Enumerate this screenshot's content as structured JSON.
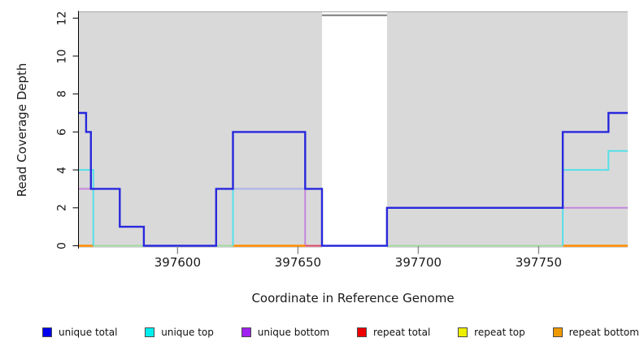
{
  "chart_data": {
    "type": "line",
    "subtype": "step-coverage-plot",
    "title": "",
    "xlabel": "Coordinate in Reference Genome",
    "ylabel": "Read Coverage Depth",
    "xlim": [
      397559,
      397787
    ],
    "ylim": [
      0,
      12
    ],
    "x_ticks": [
      397600,
      397650,
      397700,
      397750
    ],
    "y_ticks": [
      0,
      2,
      4,
      6,
      8,
      10,
      12
    ],
    "grid": false,
    "legend_position": "bottom",
    "background_shading": {
      "color": "#d9d9d9",
      "covered_regions": [
        [
          397559,
          397660
        ],
        [
          397687,
          397787
        ]
      ],
      "uncovered_gap": [
        [
          397660,
          397687
        ]
      ],
      "note": "gray band = covered interval; white gap at 397660-397687 with off-scale gray segment clipped at top"
    },
    "series": [
      {
        "name": "unique total",
        "legend_color": "#0000EE",
        "points": [
          [
            397559,
            7
          ],
          [
            397562,
            7
          ],
          [
            397562,
            6
          ],
          [
            397564,
            6
          ],
          [
            397564,
            3
          ],
          [
            397576,
            3
          ],
          [
            397576,
            1
          ],
          [
            397586,
            1
          ],
          [
            397586,
            0
          ],
          [
            397616,
            0
          ],
          [
            397616,
            3
          ],
          [
            397623,
            3
          ],
          [
            397623,
            6
          ],
          [
            397653,
            6
          ],
          [
            397653,
            3
          ],
          [
            397660,
            3
          ],
          [
            397660,
            0
          ],
          [
            397687,
            0
          ],
          [
            397687,
            2
          ],
          [
            397760,
            2
          ],
          [
            397760,
            6
          ],
          [
            397779,
            6
          ],
          [
            397779,
            7
          ],
          [
            397787,
            7
          ]
        ]
      },
      {
        "name": "unique top",
        "legend_color": "#00EEEE",
        "points": [
          [
            397559,
            4
          ],
          [
            397565,
            4
          ],
          [
            397565,
            0
          ],
          [
            397623,
            0
          ],
          [
            397623,
            3
          ],
          [
            397660,
            3
          ],
          [
            397660,
            0
          ],
          [
            397760,
            0
          ],
          [
            397760,
            4
          ],
          [
            397779,
            4
          ],
          [
            397779,
            5
          ],
          [
            397787,
            5
          ]
        ]
      },
      {
        "name": "unique bottom",
        "legend_color": "#A020F0",
        "points": [
          [
            397559,
            3
          ],
          [
            397564,
            3
          ],
          [
            397564,
            0
          ],
          [
            397616,
            0
          ],
          [
            397616,
            3
          ],
          [
            397653,
            3
          ],
          [
            397653,
            0
          ],
          [
            397687,
            0
          ],
          [
            397687,
            2
          ],
          [
            397787,
            2
          ]
        ]
      },
      {
        "name": "repeat total",
        "legend_color": "#EE0000",
        "points": [
          [
            397653,
            0
          ],
          [
            397660,
            0
          ]
        ]
      },
      {
        "name": "repeat top",
        "legend_color": "#EEEE00",
        "points": []
      },
      {
        "name": "repeat bottom",
        "legend_color": "#EE9900",
        "segments": [
          [
            [
              397559,
              0
            ],
            [
              397565,
              0
            ]
          ],
          [
            [
              397623,
              0
            ],
            [
              397653,
              0
            ]
          ],
          [
            [
              397760,
              0
            ],
            [
              397787,
              0
            ]
          ]
        ]
      }
    ],
    "render_layers": [
      {
        "name": "baseline-green",
        "color": "#98d898",
        "width": 1.8,
        "paths": [
          [
            [
              397559,
              0
            ],
            [
              397787,
              0
            ]
          ]
        ]
      },
      {
        "name": "unique-bottom",
        "color": "#c585dc",
        "width": 2,
        "paths": [
          [
            [
              397559,
              3
            ],
            [
              397564,
              3
            ]
          ],
          [
            [
              397616,
              3
            ],
            [
              397653,
              3
            ],
            [
              397653,
              0
            ]
          ],
          [
            [
              397687,
              2
            ],
            [
              397787,
              2
            ]
          ]
        ]
      },
      {
        "name": "unique-top-bottom-overlap",
        "color": "#aab8e8",
        "width": 2,
        "paths": [
          [
            [
              397623,
              3
            ],
            [
              397653,
              3
            ]
          ]
        ]
      },
      {
        "name": "repeat-total",
        "color": "#dd4466",
        "width": 2,
        "paths": [
          [
            [
              397653,
              0
            ],
            [
              397660,
              0
            ]
          ]
        ]
      },
      {
        "name": "repeat-bottom",
        "color": "#ff8c00",
        "width": 2.4,
        "paths": [
          [
            [
              397559,
              0
            ],
            [
              397565,
              0
            ]
          ],
          [
            [
              397623,
              0
            ],
            [
              397653,
              0
            ]
          ],
          [
            [
              397760,
              0
            ],
            [
              397787,
              0
            ]
          ]
        ]
      },
      {
        "name": "unique-top",
        "color": "#55e0e8",
        "width": 2,
        "paths": [
          [
            [
              397559,
              4
            ],
            [
              397565,
              4
            ],
            [
              397565,
              0
            ]
          ],
          [
            [
              397623,
              0
            ],
            [
              397623,
              3
            ]
          ],
          [
            [
              397760,
              0
            ],
            [
              397760,
              4
            ],
            [
              397779,
              4
            ],
            [
              397779,
              5
            ],
            [
              397787,
              5
            ]
          ]
        ]
      },
      {
        "name": "unique-total",
        "color": "#2828dd",
        "width": 2.4,
        "paths": [
          [
            [
              397559,
              7
            ],
            [
              397562,
              7
            ],
            [
              397562,
              6
            ],
            [
              397564,
              6
            ],
            [
              397564,
              3
            ],
            [
              397576,
              3
            ],
            [
              397576,
              1
            ],
            [
              397586,
              1
            ],
            [
              397586,
              0
            ],
            [
              397616,
              0
            ],
            [
              397616,
              3
            ],
            [
              397623,
              3
            ],
            [
              397623,
              6
            ],
            [
              397653,
              6
            ],
            [
              397653,
              3
            ],
            [
              397660,
              3
            ],
            [
              397660,
              0
            ],
            [
              397687,
              0
            ],
            [
              397687,
              2
            ],
            [
              397760,
              2
            ],
            [
              397760,
              6
            ],
            [
              397779,
              6
            ],
            [
              397779,
              7
            ],
            [
              397787,
              7
            ]
          ]
        ]
      },
      {
        "name": "offscale-clip",
        "color": "#8c8c8c",
        "width": 2.4,
        "paths": [
          [
            [
              397660,
              12.15
            ],
            [
              397687,
              12.15
            ]
          ]
        ]
      }
    ]
  },
  "legend": {
    "items": [
      {
        "label": "unique total",
        "color": "#0000EE"
      },
      {
        "label": "unique top",
        "color": "#00EEEE"
      },
      {
        "label": "unique bottom",
        "color": "#A020F0"
      },
      {
        "label": "repeat total",
        "color": "#EE0000"
      },
      {
        "label": "repeat top",
        "color": "#EEEE00"
      },
      {
        "label": "repeat bottom",
        "color": "#EE9900"
      }
    ]
  }
}
